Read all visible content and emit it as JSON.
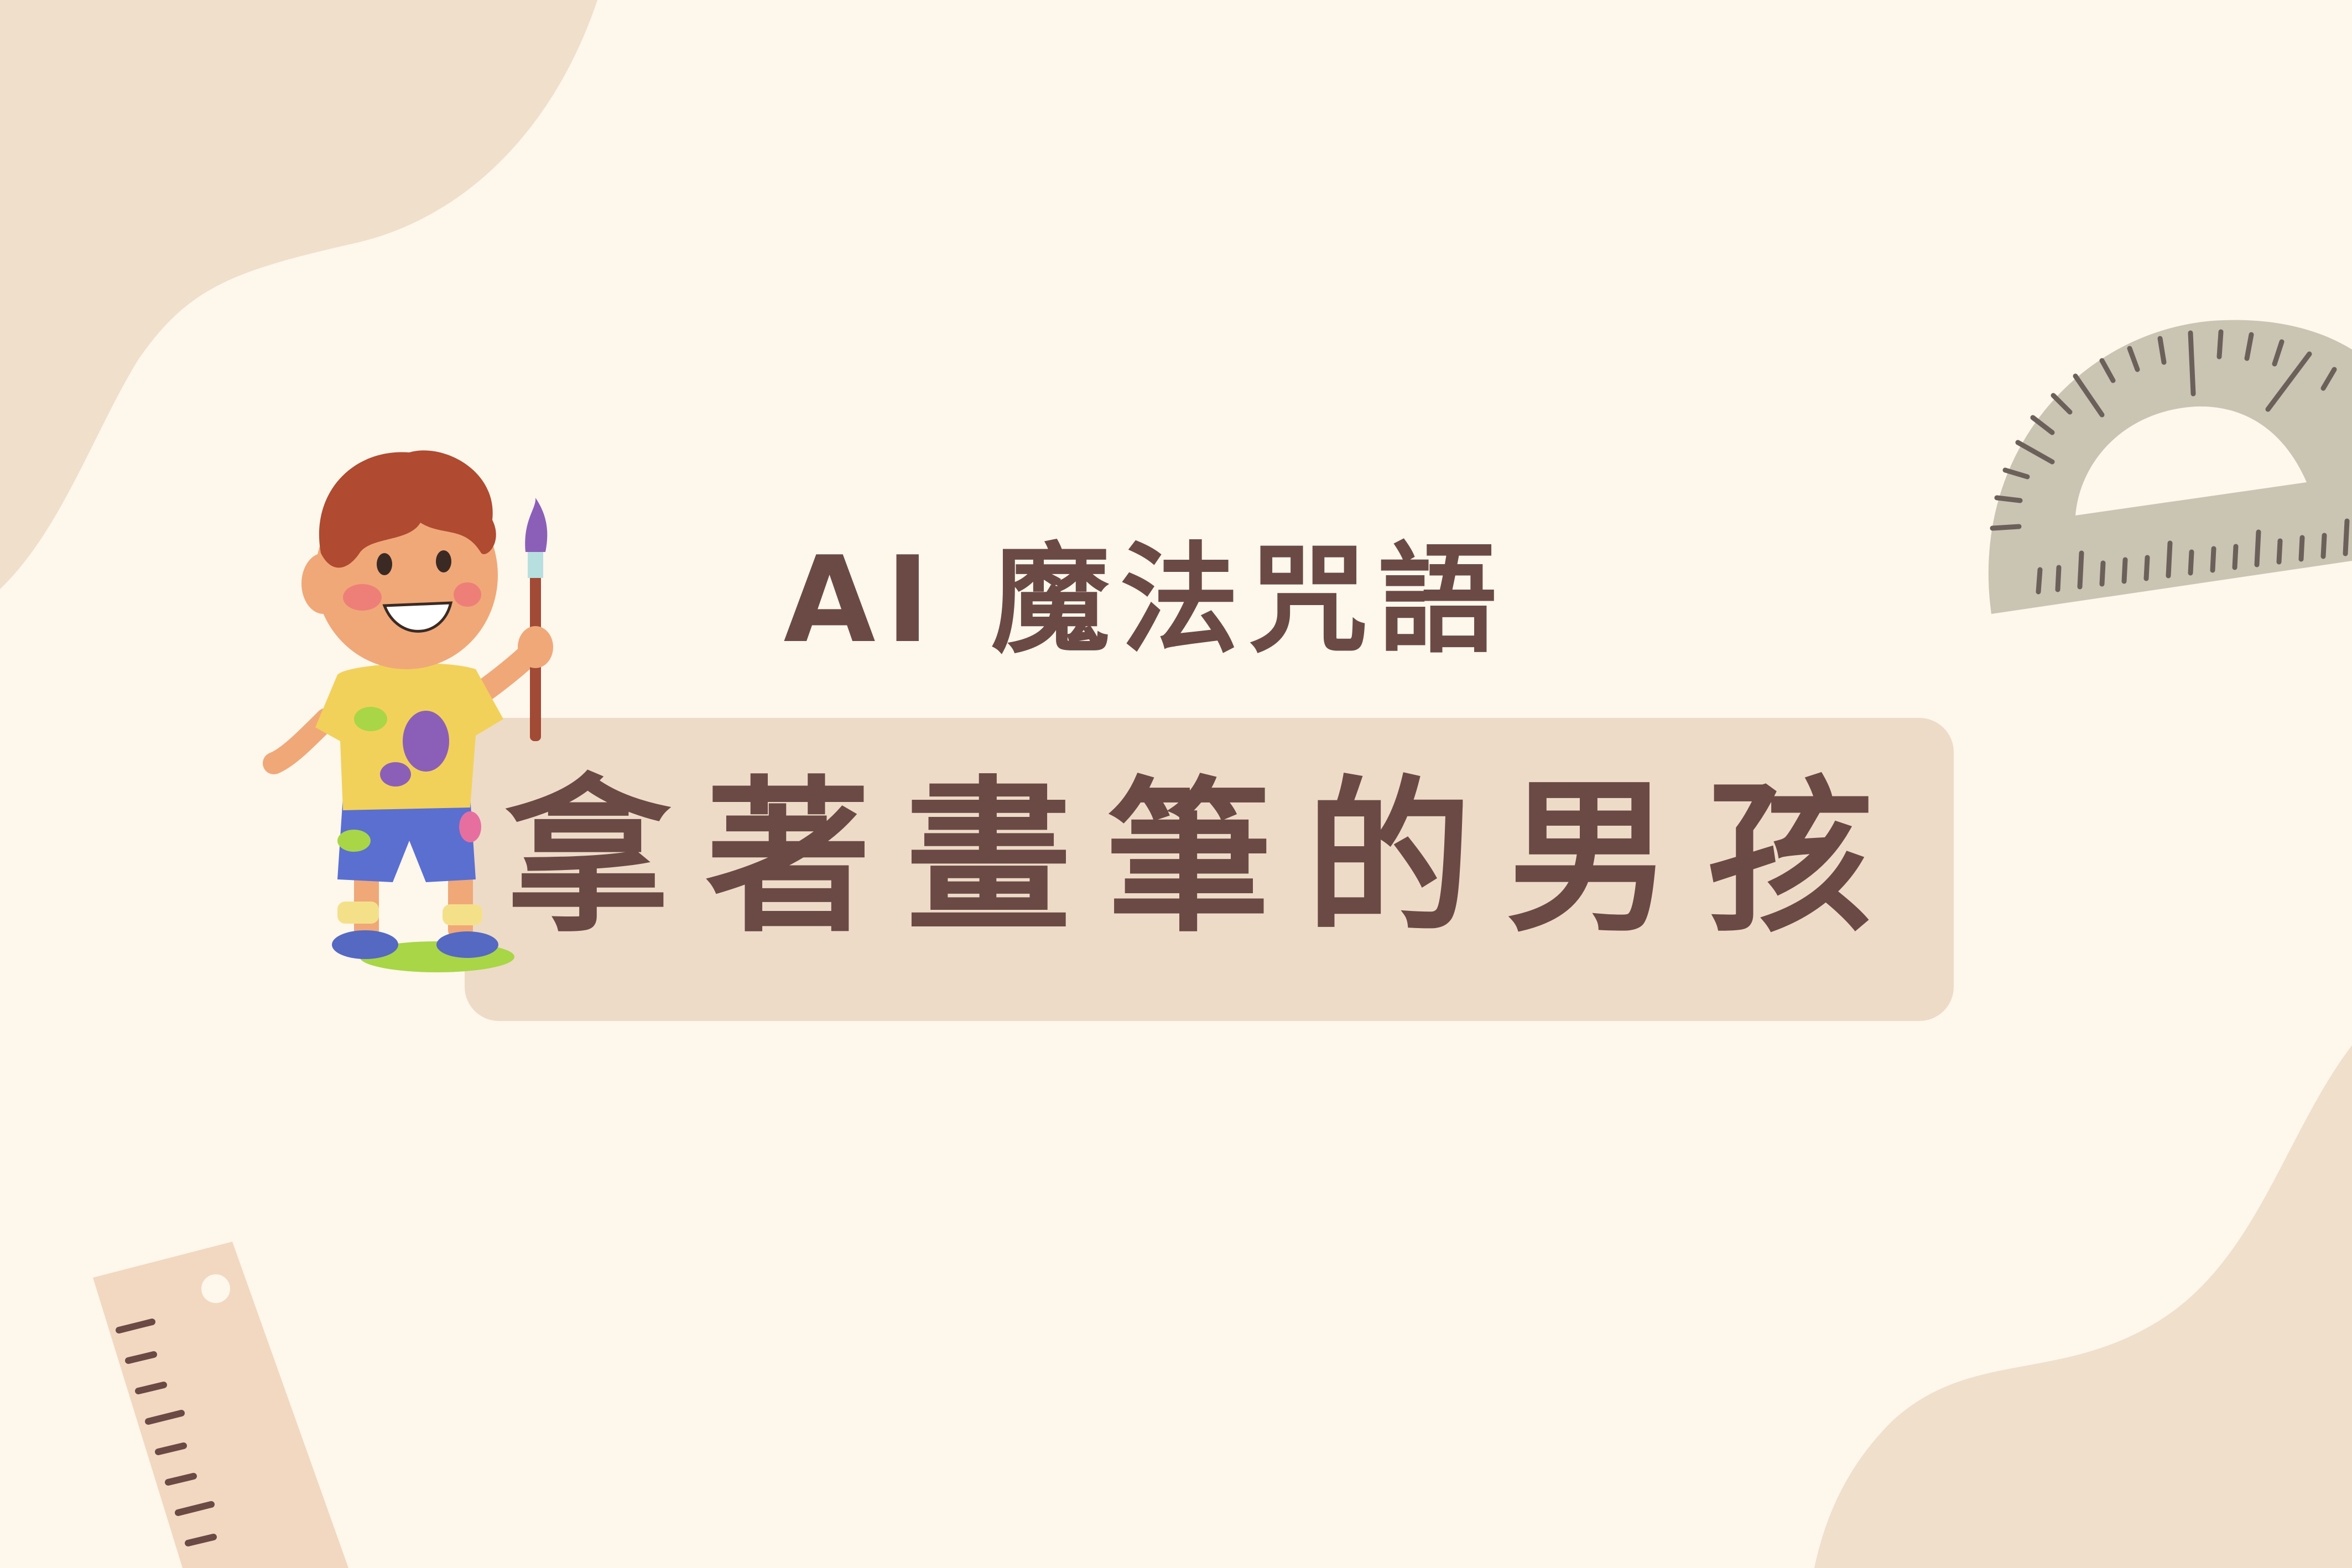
{
  "banner": {
    "subtitle": "AI 魔法咒語",
    "title": "拿著畫筆的男孩"
  },
  "colors": {
    "background": "#fdf7ec",
    "blob": "#efdfcb",
    "title_box": "#eddbc7",
    "text": "#6b4a45",
    "protractor": "#cac4b3",
    "ruler": "#f2d8c0"
  },
  "illustration": {
    "icons": [
      "boy-with-paintbrush-icon",
      "protractor-icon",
      "ruler-icon"
    ]
  }
}
